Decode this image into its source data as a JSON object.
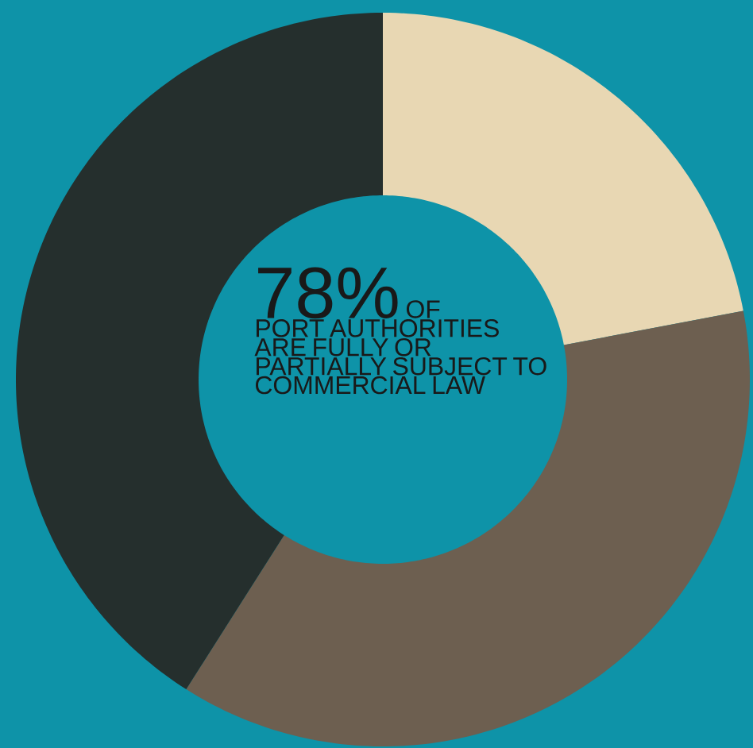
{
  "chart_data": {
    "type": "donut",
    "categories": [
      null,
      null,
      null
    ],
    "values": [
      22,
      37,
      41
    ],
    "colors": [
      "#e8d7b3",
      "#6d5f50",
      "#252f2d"
    ],
    "annotations": [
      "78%",
      "OF PORT AUTHORITIES ARE FULLY OR PARTIALLY SUBJECT TO COMMERCIAL LAW"
    ]
  }
}
